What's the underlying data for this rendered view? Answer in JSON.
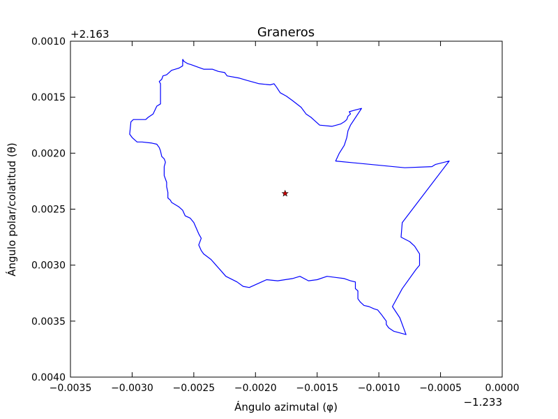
{
  "chart_data": {
    "type": "line",
    "title": "Graneros",
    "xlabel": "Ángulo azimutal (φ)",
    "ylabel": "Ángulo polar/colatitud (θ)",
    "x_offset_label": "−1.233",
    "y_offset_label": "+2.163",
    "xlim": [
      -0.0035,
      0.0
    ],
    "ylim": [
      0.004,
      0.001
    ],
    "y_inverted": true,
    "grid": false,
    "x_ticks": [
      -0.0035,
      -0.003,
      -0.0025,
      -0.002,
      -0.0015,
      -0.001,
      -0.0005,
      0.0
    ],
    "x_tick_labels": [
      "−0.0035",
      "−0.0030",
      "−0.0025",
      "−0.0020",
      "−0.0015",
      "−0.0010",
      "−0.0005",
      "0.0000"
    ],
    "y_ticks": [
      0.001,
      0.0015,
      0.002,
      0.0025,
      0.003,
      0.0035,
      0.004
    ],
    "y_tick_labels": [
      "0.0010",
      "0.0015",
      "0.0020",
      "0.0025",
      "0.0030",
      "0.0035",
      "0.0040"
    ],
    "series": [
      {
        "color": "#0000ff",
        "x": [
          -0.00259,
          -0.00259,
          -0.00262,
          -0.00268,
          -0.00272,
          -0.00275,
          -0.00276,
          -0.00278,
          -0.00277,
          -0.00277,
          -0.00277,
          -0.0028,
          -0.00283,
          -0.00287,
          -0.00289,
          -0.00299,
          -0.00301,
          -0.00302,
          -0.003,
          -0.00296,
          -0.00292,
          -0.00284,
          -0.0028,
          -0.00278,
          -0.00277,
          -0.00276,
          -0.00274,
          -0.00273,
          -0.00274,
          -0.00274,
          -0.00272,
          -0.00272,
          -0.00271,
          -0.00271,
          -0.00269,
          -0.00268,
          -0.00262,
          -0.00259,
          -0.00257,
          -0.00253,
          -0.0025,
          -0.00248,
          -0.00246,
          -0.00244,
          -0.00246,
          -0.00244,
          -0.00242,
          -0.00236,
          -0.00232,
          -0.00228,
          -0.00224,
          -0.00215,
          -0.0021,
          -0.00205,
          -0.00195,
          -0.00191,
          -0.00182,
          -0.0017,
          -0.00164,
          -0.00157,
          -0.0015,
          -0.00142,
          -0.00135,
          -0.00128,
          -0.00123,
          -0.00119,
          -0.00119,
          -0.00119,
          -0.00117,
          -0.00117,
          -0.00117,
          -0.00115,
          -0.00112,
          -0.00108,
          -0.00104,
          -0.00101,
          -0.00098,
          -0.00096,
          -0.00094,
          -0.00094,
          -0.00092,
          -0.00088,
          -0.00078,
          -0.00083,
          -0.00089,
          -0.00081,
          -0.0007,
          -0.00067,
          -0.00067,
          -0.00067,
          -0.00071,
          -0.00075,
          -0.00082,
          -0.00081,
          -0.00043,
          -0.00054,
          -0.00057,
          -0.00079,
          -0.00135,
          -0.00132,
          -0.00128,
          -0.00126,
          -0.00125,
          -0.00123,
          -0.00114,
          -0.00121,
          -0.00124,
          -0.00123,
          -0.00125,
          -0.00126,
          -0.00128,
          -0.00131,
          -0.00138,
          -0.00148,
          -0.00153,
          -0.00155,
          -0.00159,
          -0.00163,
          -0.0017,
          -0.00175,
          -0.0018,
          -0.00183,
          -0.00185,
          -0.00188,
          -0.00197,
          -0.00207,
          -0.00213,
          -0.00223,
          -0.00225,
          -0.0023,
          -0.00235,
          -0.00242,
          -0.00247,
          -0.00252,
          -0.00255,
          -0.00258,
          -0.00259
        ],
        "y": [
          0.00116,
          0.00122,
          0.00124,
          0.00126,
          0.0013,
          0.00131,
          0.00134,
          0.00136,
          0.00138,
          0.0015,
          0.00156,
          0.00158,
          0.00165,
          0.00168,
          0.0017,
          0.0017,
          0.00172,
          0.00183,
          0.00186,
          0.0019,
          0.0019,
          0.00191,
          0.00192,
          0.00195,
          0.00198,
          0.00203,
          0.00205,
          0.00208,
          0.00212,
          0.0022,
          0.00226,
          0.0023,
          0.00235,
          0.0024,
          0.00242,
          0.00244,
          0.00248,
          0.00251,
          0.00256,
          0.00258,
          0.00262,
          0.00267,
          0.00272,
          0.00276,
          0.00282,
          0.00287,
          0.0029,
          0.00295,
          0.003,
          0.00305,
          0.0031,
          0.00315,
          0.00319,
          0.0032,
          0.00315,
          0.00313,
          0.00314,
          0.00312,
          0.0031,
          0.00314,
          0.00313,
          0.0031,
          0.00311,
          0.00312,
          0.00314,
          0.00315,
          0.00318,
          0.00321,
          0.00323,
          0.00326,
          0.0033,
          0.00333,
          0.00336,
          0.00337,
          0.00339,
          0.0034,
          0.00344,
          0.00347,
          0.0035,
          0.00353,
          0.00356,
          0.00359,
          0.00362,
          0.00347,
          0.00337,
          0.00321,
          0.00304,
          0.003,
          0.00296,
          0.0029,
          0.00283,
          0.00279,
          0.00275,
          0.00262,
          0.00207,
          0.0021,
          0.00212,
          0.00213,
          0.00207,
          0.002,
          0.00193,
          0.00186,
          0.0018,
          0.00175,
          0.0016,
          0.00162,
          0.00163,
          0.00165,
          0.00167,
          0.0017,
          0.00172,
          0.00174,
          0.00176,
          0.00175,
          0.0017,
          0.00168,
          0.00165,
          0.00159,
          0.00153,
          0.00149,
          0.00146,
          0.00141,
          0.00138,
          0.00139,
          0.00138,
          0.00135,
          0.00133,
          0.00131,
          0.00128,
          0.00127,
          0.00125,
          0.00125,
          0.00123,
          0.00121,
          0.0012,
          0.00118,
          0.00116
        ]
      },
      {
        "type": "scatter",
        "marker": "star",
        "color": "#cc0000",
        "x": [
          -0.00176
        ],
        "y": [
          0.00236
        ]
      }
    ]
  }
}
